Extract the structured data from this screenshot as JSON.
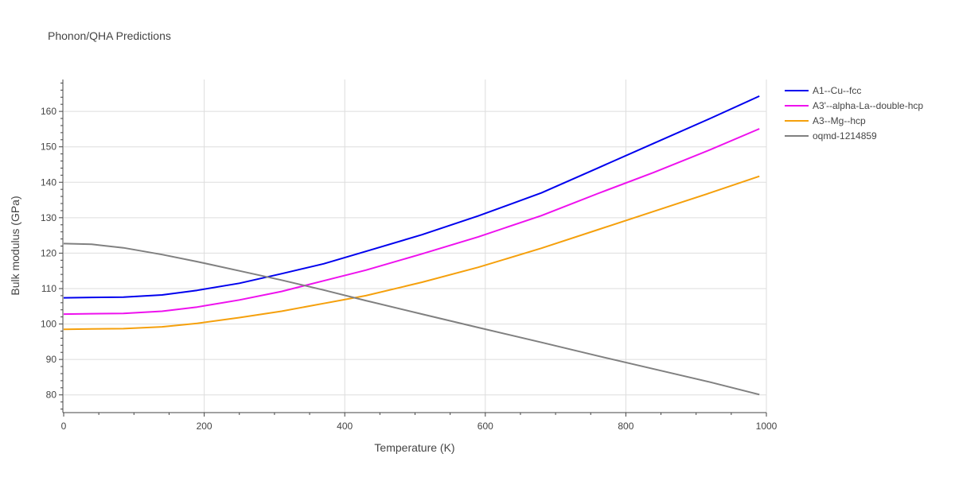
{
  "chart_data": {
    "type": "line",
    "title": "Phonon/QHA Predictions",
    "xlabel": "Temperature (K)",
    "ylabel": "Bulk modulus (GPa)",
    "xlim": [
      0,
      1000
    ],
    "ylim": [
      75,
      169
    ],
    "xticks": [
      0,
      200,
      400,
      600,
      800,
      1000
    ],
    "yticks": [
      80,
      90,
      100,
      110,
      120,
      130,
      140,
      150,
      160
    ],
    "grid": true,
    "legend_position": "top-right",
    "series": [
      {
        "name": "A1--Cu--fcc",
        "color": "#0000ee",
        "x": [
          0,
          40,
          85,
          140,
          190,
          250,
          310,
          370,
          430,
          510,
          590,
          680,
          760,
          840,
          920,
          990
        ],
        "y": [
          107.4,
          107.5,
          107.6,
          108.2,
          109.5,
          111.5,
          114.2,
          117.0,
          120.5,
          125.2,
          130.5,
          137.0,
          144.0,
          151.0,
          158.0,
          164.3
        ]
      },
      {
        "name": "A3'--alpha-La--double-hcp",
        "color": "#ee11ee",
        "x": [
          0,
          40,
          85,
          140,
          190,
          250,
          310,
          370,
          430,
          510,
          590,
          680,
          760,
          840,
          920,
          990
        ],
        "y": [
          102.8,
          102.9,
          103.0,
          103.6,
          104.8,
          106.8,
          109.2,
          112.2,
          115.2,
          119.8,
          124.6,
          130.6,
          136.8,
          142.8,
          149.2,
          155.1
        ]
      },
      {
        "name": "A3--Mg--hcp",
        "color": "#f5a00c",
        "x": [
          0,
          40,
          85,
          140,
          190,
          250,
          310,
          370,
          430,
          510,
          590,
          680,
          760,
          840,
          920,
          990
        ],
        "y": [
          98.5,
          98.6,
          98.7,
          99.2,
          100.2,
          101.8,
          103.6,
          105.8,
          108.0,
          111.8,
          116.0,
          121.4,
          126.6,
          131.8,
          137.0,
          141.7
        ]
      },
      {
        "name": "oqmd-1214859",
        "color": "#808080",
        "x": [
          0,
          40,
          85,
          140,
          190,
          250,
          310,
          370,
          430,
          510,
          590,
          680,
          760,
          840,
          920,
          990
        ],
        "y": [
          122.7,
          122.5,
          121.5,
          119.6,
          117.6,
          115.0,
          112.4,
          109.6,
          106.6,
          102.8,
          99.0,
          94.8,
          91.0,
          87.3,
          83.6,
          80.1
        ]
      }
    ]
  }
}
